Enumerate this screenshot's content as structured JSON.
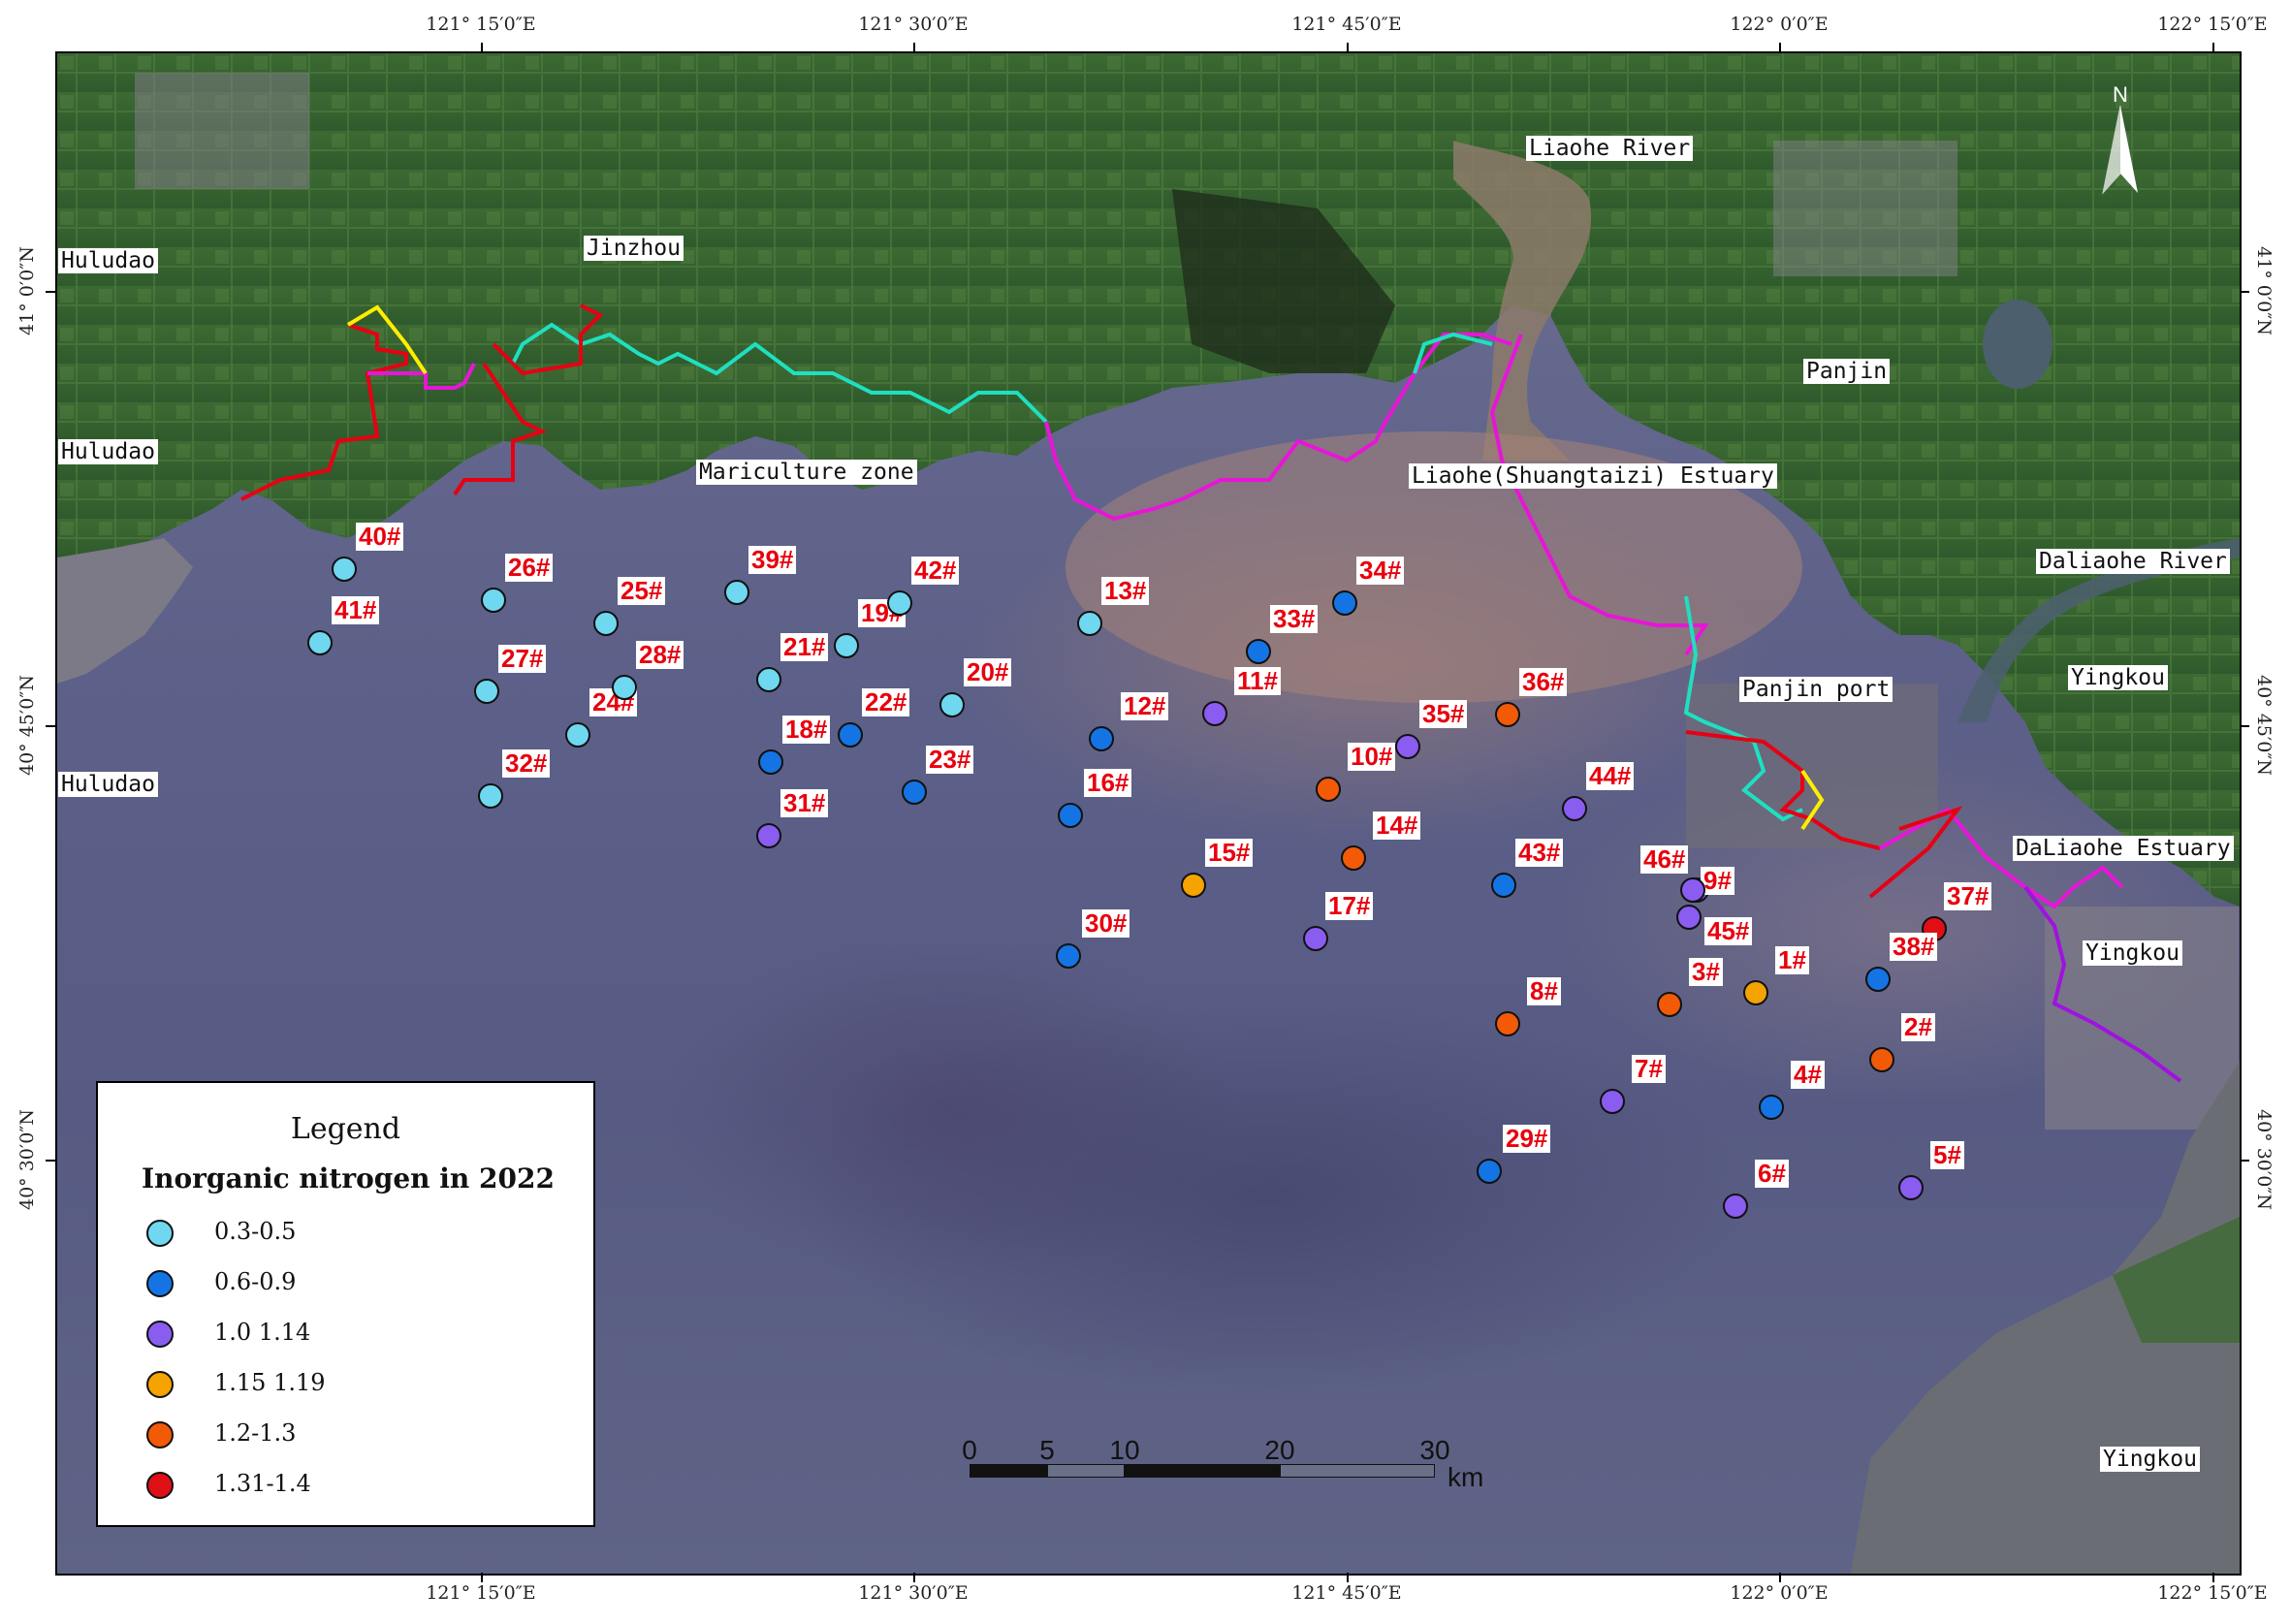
{
  "map": {
    "top_ticks": [
      "121° 15′0″E",
      "121° 30′0″E",
      "121° 45′0″E",
      "122° 0′0″E",
      "122° 15′0″E"
    ],
    "bottom_ticks": [
      "121° 15′0″E",
      "121° 30′0″E",
      "121° 45′0″E",
      "122° 0′0″E",
      "122° 15′0″E"
    ],
    "left_ticks": [
      "41° 0′0″N",
      "40° 45′0″N",
      "40° 30′0″N"
    ],
    "right_ticks": [
      "41° 0′0″N",
      "40° 45′0″N",
      "40° 30′0″N"
    ],
    "place_labels": {
      "huludao_1": "Huludao",
      "huludao_2": "Huludao",
      "huludao_3": "Huludao",
      "jinzhou": "Jinzhou",
      "liaohe_river": "Liaohe River",
      "panjin": "Panjin",
      "mariculture_zone": "Mariculture zone",
      "liaohe_estuary": "Liaohe(Shuangtaizi) Estuary",
      "daliaohe_river": "Daliaohe River",
      "panjin_port": "Panjin port",
      "yingkou_1": "Yingkou",
      "daliaohe_estuary": "DaLiaohe Estuary",
      "yingkou_2": "Yingkou",
      "yingkou_3": "Yingkou"
    },
    "north_arrow": "N",
    "scale": {
      "labels": [
        "0",
        "5",
        "10",
        "20",
        "30"
      ],
      "unit": "km"
    }
  },
  "legend": {
    "title": "Legend",
    "subtitle": "Inorganic nitrogen in 2022",
    "classes": [
      {
        "label": "0.3-0.5",
        "color": "#6fd8f0"
      },
      {
        "label": "0.6-0.9",
        "color": "#1574e3"
      },
      {
        "label": "1.0 1.14",
        "color": "#8a5cf0"
      },
      {
        "label": "1.15 1.19",
        "color": "#f5a300"
      },
      {
        "label": "1.2-1.3",
        "color": "#f25a08"
      },
      {
        "label": "1.31-1.4",
        "color": "#e00f16"
      }
    ]
  },
  "stations": [
    {
      "label": "1#",
      "class": 3
    },
    {
      "label": "2#",
      "class": 4
    },
    {
      "label": "3#",
      "class": 4
    },
    {
      "label": "4#",
      "class": 1
    },
    {
      "label": "5#",
      "class": 2
    },
    {
      "label": "6#",
      "class": 2
    },
    {
      "label": "7#",
      "class": 2
    },
    {
      "label": "8#",
      "class": 4
    },
    {
      "label": "9#",
      "class": 2
    },
    {
      "label": "10#",
      "class": 4
    },
    {
      "label": "11#",
      "class": 2
    },
    {
      "label": "12#",
      "class": 1
    },
    {
      "label": "13#",
      "class": 0
    },
    {
      "label": "14#",
      "class": 4
    },
    {
      "label": "15#",
      "class": 3
    },
    {
      "label": "16#",
      "class": 1
    },
    {
      "label": "17#",
      "class": 2
    },
    {
      "label": "18#",
      "class": 1
    },
    {
      "label": "19#",
      "class": 0
    },
    {
      "label": "20#",
      "class": 0
    },
    {
      "label": "21#",
      "class": 0
    },
    {
      "label": "22#",
      "class": 1
    },
    {
      "label": "23#",
      "class": 1
    },
    {
      "label": "24#",
      "class": 0
    },
    {
      "label": "25#",
      "class": 0
    },
    {
      "label": "26#",
      "class": 0
    },
    {
      "label": "27#",
      "class": 0
    },
    {
      "label": "28#",
      "class": 0
    },
    {
      "label": "29#",
      "class": 1
    },
    {
      "label": "30#",
      "class": 1
    },
    {
      "label": "31#",
      "class": 2
    },
    {
      "label": "32#",
      "class": 0
    },
    {
      "label": "33#",
      "class": 1
    },
    {
      "label": "34#",
      "class": 1
    },
    {
      "label": "35#",
      "class": 2
    },
    {
      "label": "36#",
      "class": 4
    },
    {
      "label": "37#",
      "class": 5
    },
    {
      "label": "38#",
      "class": 1
    },
    {
      "label": "39#",
      "class": 0
    },
    {
      "label": "40#",
      "class": 0
    },
    {
      "label": "41#",
      "class": 0
    },
    {
      "label": "42#",
      "class": 0
    },
    {
      "label": "43#",
      "class": 1
    },
    {
      "label": "44#",
      "class": 2
    },
    {
      "label": "45#",
      "class": 2
    },
    {
      "label": "46#",
      "class": 2
    }
  ]
}
